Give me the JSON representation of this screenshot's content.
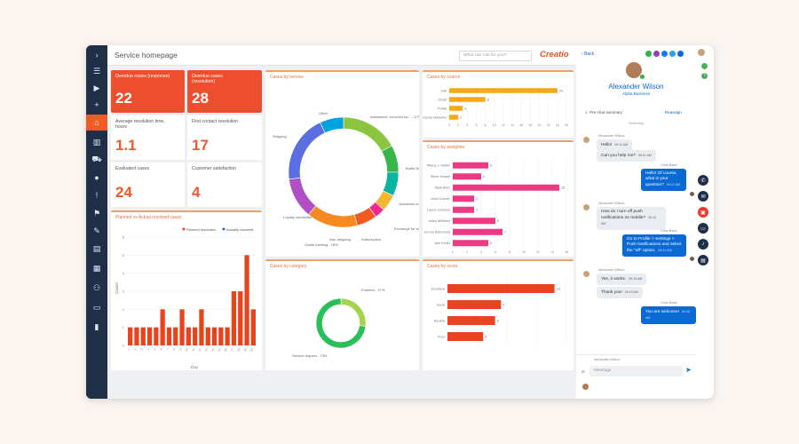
{
  "app": {
    "page_title": "Service homepage",
    "search_placeholder": "What can I do for you?",
    "logo": "Creatio"
  },
  "nav_icons": [
    "chevron-right-icon",
    "menu-icon",
    "play-icon",
    "plus-icon",
    "home-icon",
    "chart-icon",
    "cart-icon",
    "contact-icon",
    "alert-icon",
    "flag-icon",
    "cases-icon",
    "document-icon",
    "book-icon",
    "users-icon",
    "chat-icon",
    "library-icon"
  ],
  "tiles": [
    {
      "label": "Overdue cases (response)",
      "value": "22"
    },
    {
      "label": "Overdue cases (resolution)",
      "value": "28"
    },
    {
      "label": "Average resolution time, hours",
      "value": "1.1"
    },
    {
      "label": "First contact resolution",
      "value": "17"
    },
    {
      "label": "Evaluated cases",
      "value": "24"
    },
    {
      "label": "Customer satisfaction",
      "value": "4"
    }
  ],
  "panels": {
    "planned_actual": {
      "title": "Planned vs Actual resolved cases",
      "legend_planned": "Planned resolution",
      "legend_actual": "Actually resolved",
      "ylabel": "Cases",
      "xlabel": "Day",
      "yticks": [
        "0",
        "1",
        "2",
        "3",
        "4",
        "5",
        "6"
      ]
    },
    "by_service": {
      "title": "Cases by service"
    },
    "by_source": {
      "title": "Cases by source"
    },
    "by_assignee": {
      "title": "Cases by assignee"
    },
    "by_category": {
      "title": "Cases by category"
    },
    "by_score": {
      "title": "Cases by score"
    }
  },
  "chart_data": [
    {
      "id": "planned_actual",
      "type": "bar",
      "title": "Planned vs Actual resolved cases",
      "xlabel": "Day",
      "ylabel": "Cases",
      "ylim": [
        0,
        6
      ],
      "categories": [
        "1",
        "2",
        "3",
        "4",
        "5",
        "6",
        "7",
        "8",
        "9",
        "10",
        "11",
        "12",
        "13",
        "14",
        "15",
        "16",
        "17",
        "18",
        "19",
        "20"
      ],
      "series": [
        {
          "name": "Actually resolved",
          "values": [
            1,
            1,
            1,
            1,
            1,
            2,
            1,
            1,
            2,
            1,
            1,
            2,
            1,
            1,
            1,
            1,
            3,
            3,
            5,
            2
          ]
        }
      ],
      "colors": {
        "bars": "#e8441c"
      }
    },
    {
      "id": "by_service",
      "type": "pie",
      "title": "Cases by service",
      "categories": [
        "Assistance: incorrect ba...",
        "Bottle Return",
        "Questions on clarifying...",
        "Exchange for another...",
        "Subscription",
        "Ask: shipping",
        "Grade tracking",
        "Loyalty cardholder...",
        "Shipping",
        "Other"
      ],
      "labels": [
        "Assistance: incorrect ba... - 17%",
        "Bottle Return",
        "Questions on clarifying...",
        "Exchange for another... - 5%",
        "Subscription",
        "Ask: shipping",
        "Grade tracking - 15%",
        "Loyalty cardholder...",
        "Shipping",
        "Other"
      ],
      "values": [
        17,
        8,
        7,
        5,
        3,
        6,
        15,
        12,
        20,
        7
      ],
      "colors": [
        "#8bc53f",
        "#3ab54a",
        "#0bb3a3",
        "#f7b733",
        "#ec2b8a",
        "#f15a24",
        "#f6891f",
        "#b14fc5",
        "#5b6ee1",
        "#00a3e0"
      ]
    },
    {
      "id": "by_source",
      "type": "bar",
      "orientation": "horizontal",
      "title": "Cases by source",
      "categories": [
        "Call",
        "Email",
        "Portal",
        "Social networks"
      ],
      "values": [
        24,
        8,
        3,
        2
      ],
      "xlim": [
        0,
        26
      ],
      "xticks": [
        "0",
        "2",
        "4",
        "6",
        "8",
        "10",
        "12",
        "14",
        "16",
        "18",
        "20",
        "22",
        "24",
        "26"
      ],
      "colors": {
        "bars": "#f7a818"
      }
    },
    {
      "id": "by_assignee",
      "type": "bar",
      "orientation": "horizontal",
      "title": "Cases by assignee",
      "categories": [
        "Tiffany J. Martin",
        "Steve Howell",
        "Mark Beer",
        "Lena Cramer",
        "Laurel Johnson",
        "Julien Williams",
        "Emma Richmond",
        "Ann Keller"
      ],
      "values": [
        5,
        4,
        15,
        3,
        3,
        6,
        7,
        5
      ],
      "xlim": [
        0,
        16
      ],
      "xticks": [
        "0",
        "2",
        "4",
        "6",
        "8",
        "10",
        "12",
        "14",
        "16"
      ],
      "colors": {
        "bars": "#ec3a84"
      }
    },
    {
      "id": "by_category",
      "type": "pie",
      "title": "Cases by category",
      "categories": [
        "Problem",
        "Service request"
      ],
      "labels": [
        "Problem - 27%",
        "Service request - 73%"
      ],
      "values": [
        27,
        73
      ],
      "colors": [
        "#a3d34a",
        "#2bbf5a"
      ]
    },
    {
      "id": "by_score",
      "type": "bar",
      "orientation": "horizontal",
      "title": "Cases by score",
      "categories": [
        "Excellent",
        "Good",
        "Neutral",
        "Poor"
      ],
      "values": [
        18,
        9,
        8,
        6
      ],
      "xlim": [
        0,
        20
      ],
      "colors": {
        "bars": "#ea4320"
      }
    }
  ],
  "chat": {
    "back": "Back",
    "contact_name": "Alexander Wilson",
    "contact_subtitle": "Alpha Business",
    "contact_tab": "Pre-chat summary",
    "reassign": "Reassign",
    "date_label": "Yesterday",
    "messages": [
      {
        "dir": "in",
        "name": "Alexander Wilson",
        "text": "Hello!",
        "time": "09:11 AM"
      },
      {
        "dir": "in",
        "name": "",
        "text": "Can you help me?",
        "time": "09:11 AM"
      },
      {
        "dir": "out",
        "name": "Chris Bean",
        "text": "Hello! Of course, what is your question?",
        "time": "09:12 AM"
      },
      {
        "dir": "in",
        "name": "Alexander Wilson",
        "text": "How do I turn off push notifications on mobile?",
        "time": "09:13 AM"
      },
      {
        "dir": "out",
        "name": "Chris Bean",
        "text": "Go to Profile > Settings > Push Notifications and select the \"off\" option.",
        "time": "09:14 AM"
      },
      {
        "dir": "in",
        "name": "Alexander Wilson",
        "text": "Yes, it works.",
        "time": "09:15 AM"
      },
      {
        "dir": "in",
        "name": "",
        "text": "Thank you!",
        "time": "09:15 AM"
      },
      {
        "dir": "out",
        "name": "Chris Bean",
        "text": "You are welcome!",
        "time": "09:16 AM"
      }
    ],
    "composer_sender": "Alexander Wilson",
    "composer_placeholder": "Message"
  },
  "right_rail": [
    "phone-icon",
    "mail-icon",
    "video-icon",
    "chat-icon",
    "bell-icon",
    "document-icon"
  ]
}
